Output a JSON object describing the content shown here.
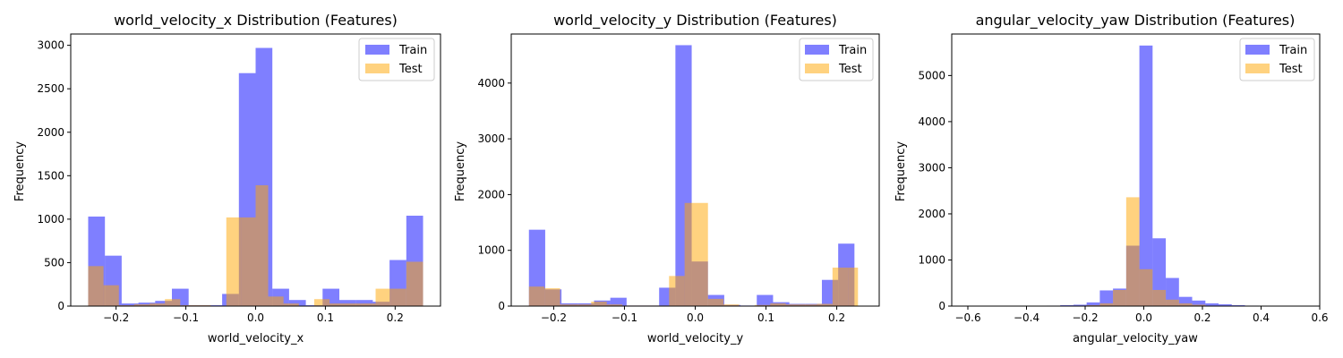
{
  "colors": {
    "train": "#0000ff",
    "test": "#ffa500",
    "train_alpha": 0.5,
    "test_alpha": 0.5
  },
  "chart_data": [
    {
      "type": "histogram",
      "title": "world_velocity_x Distribution (Features)",
      "xlabel": "world_velocity_x",
      "ylabel": "Frequency",
      "xlim": [
        -0.265,
        0.265
      ],
      "ylim": [
        0,
        3130
      ],
      "xticks": [
        -0.2,
        -0.1,
        0.0,
        0.1,
        0.2
      ],
      "xtick_labels": [
        "−0.2",
        "−0.1",
        "0.0",
        "0.1",
        "0.2"
      ],
      "yticks": [
        0,
        500,
        1000,
        1500,
        2000,
        2500,
        3000
      ],
      "ytick_labels": [
        "0",
        "500",
        "1000",
        "1500",
        "2000",
        "2500",
        "3000"
      ],
      "legend": [
        "Train",
        "Test"
      ],
      "legend_position": "top-right",
      "series": [
        {
          "name": "Train",
          "bins": [
            [
              -0.24,
              -0.216
            ],
            [
              -0.216,
              -0.192
            ],
            [
              -0.192,
              -0.168
            ],
            [
              -0.168,
              -0.144
            ],
            [
              -0.144,
              -0.12
            ],
            [
              -0.12,
              -0.096
            ],
            [
              -0.096,
              -0.072
            ],
            [
              -0.072,
              -0.048
            ],
            [
              -0.048,
              -0.024
            ],
            [
              -0.024,
              0.0
            ],
            [
              0.0,
              0.024
            ],
            [
              0.024,
              0.048
            ],
            [
              0.048,
              0.072
            ],
            [
              0.072,
              0.096
            ],
            [
              0.096,
              0.12
            ],
            [
              0.12,
              0.144
            ],
            [
              0.144,
              0.168
            ],
            [
              0.168,
              0.192
            ],
            [
              0.192,
              0.216
            ],
            [
              0.216,
              0.24
            ]
          ],
          "values": [
            1030,
            580,
            30,
            40,
            60,
            200,
            10,
            10,
            140,
            2680,
            2970,
            200,
            70,
            10,
            200,
            70,
            70,
            50,
            530,
            1040
          ]
        },
        {
          "name": "Test",
          "bins": [
            [
              -0.24,
              -0.218
            ],
            [
              -0.218,
              -0.196
            ],
            [
              -0.196,
              -0.174
            ],
            [
              -0.174,
              -0.152
            ],
            [
              -0.152,
              -0.13
            ],
            [
              -0.13,
              -0.108
            ],
            [
              -0.108,
              -0.086
            ],
            [
              -0.086,
              -0.064
            ],
            [
              -0.064,
              -0.042
            ],
            [
              -0.042,
              -0.02
            ],
            [
              -0.02,
              0.0
            ],
            [
              0.0,
              0.018
            ],
            [
              0.018,
              0.04
            ],
            [
              0.04,
              0.062
            ],
            [
              0.062,
              0.084
            ],
            [
              0.084,
              0.106
            ],
            [
              0.106,
              0.128
            ],
            [
              0.128,
              0.15
            ],
            [
              0.15,
              0.172
            ],
            [
              0.172,
              0.194
            ],
            [
              0.194,
              0.216
            ],
            [
              0.216,
              0.24
            ]
          ],
          "values": [
            460,
            240,
            10,
            20,
            30,
            80,
            10,
            10,
            0,
            1020,
            1020,
            1390,
            110,
            30,
            0,
            80,
            30,
            30,
            30,
            200,
            200,
            510
          ]
        }
      ]
    },
    {
      "type": "histogram",
      "title": "world_velocity_y Distribution (Features)",
      "xlabel": "world_velocity_y",
      "ylabel": "Frequency",
      "xlim": [
        -0.26,
        0.26
      ],
      "ylim": [
        0,
        4880
      ],
      "xticks": [
        -0.2,
        -0.1,
        0.0,
        0.1,
        0.2
      ],
      "xtick_labels": [
        "−0.2",
        "−0.1",
        "0.0",
        "0.1",
        "0.2"
      ],
      "yticks": [
        0,
        1000,
        2000,
        3000,
        4000
      ],
      "ytick_labels": [
        "0",
        "1000",
        "2000",
        "3000",
        "4000"
      ],
      "legend": [
        "Train",
        "Test"
      ],
      "legend_position": "top-right",
      "series": [
        {
          "name": "Train",
          "bins": [
            [
              -0.235,
              -0.212
            ],
            [
              -0.212,
              -0.189
            ],
            [
              -0.189,
              -0.166
            ],
            [
              -0.166,
              -0.143
            ],
            [
              -0.143,
              -0.12
            ],
            [
              -0.12,
              -0.097
            ],
            [
              -0.097,
              -0.074
            ],
            [
              -0.074,
              -0.051
            ],
            [
              -0.051,
              -0.028
            ],
            [
              -0.028,
              -0.005
            ],
            [
              -0.005,
              0.018
            ],
            [
              0.018,
              0.041
            ],
            [
              0.041,
              0.064
            ],
            [
              0.064,
              0.087
            ],
            [
              0.087,
              0.11
            ],
            [
              0.11,
              0.133
            ],
            [
              0.133,
              0.156
            ],
            [
              0.156,
              0.179
            ],
            [
              0.179,
              0.202
            ],
            [
              0.202,
              0.225
            ],
            [
              0.225,
              0.235
            ]
          ],
          "values": [
            1370,
            300,
            50,
            50,
            100,
            150,
            10,
            10,
            330,
            4680,
            800,
            200,
            20,
            10,
            200,
            70,
            40,
            40,
            470,
            1120,
            0
          ]
        },
        {
          "name": "Test",
          "bins": [
            [
              -0.235,
              -0.213
            ],
            [
              -0.213,
              -0.191
            ],
            [
              -0.191,
              -0.169
            ],
            [
              -0.169,
              -0.147
            ],
            [
              -0.147,
              -0.125
            ],
            [
              -0.125,
              -0.103
            ],
            [
              -0.103,
              -0.081
            ],
            [
              -0.081,
              -0.059
            ],
            [
              -0.059,
              -0.037
            ],
            [
              -0.037,
              -0.015
            ],
            [
              -0.015,
              0.0
            ],
            [
              0.0,
              0.018
            ],
            [
              0.018,
              0.04
            ],
            [
              0.04,
              0.062
            ],
            [
              0.062,
              0.084
            ],
            [
              0.084,
              0.106
            ],
            [
              0.106,
              0.128
            ],
            [
              0.128,
              0.15
            ],
            [
              0.15,
              0.172
            ],
            [
              0.172,
              0.194
            ],
            [
              0.194,
              0.216
            ],
            [
              0.216,
              0.23
            ]
          ],
          "values": [
            350,
            320,
            30,
            30,
            80,
            30,
            10,
            10,
            10,
            540,
            1850,
            1850,
            130,
            30,
            0,
            20,
            50,
            30,
            30,
            40,
            690,
            690
          ]
        }
      ]
    },
    {
      "type": "histogram",
      "title": "angular_velocity_yaw Distribution (Features)",
      "xlabel": "angular_velocity_yaw",
      "ylabel": "Frequency",
      "xlim": [
        -0.655,
        0.6
      ],
      "ylim": [
        0,
        5900
      ],
      "xticks": [
        -0.6,
        -0.4,
        -0.2,
        0.0,
        0.2,
        0.4,
        0.6
      ],
      "xtick_labels": [
        "−0.6",
        "−0.4",
        "−0.2",
        "0.0",
        "0.2",
        "0.4",
        "0.6"
      ],
      "yticks": [
        0,
        1000,
        2000,
        3000,
        4000,
        5000
      ],
      "ytick_labels": [
        "0",
        "1000",
        "2000",
        "3000",
        "4000",
        "5000"
      ],
      "legend": [
        "Train",
        "Test"
      ],
      "legend_position": "top-right",
      "series": [
        {
          "name": "Train",
          "bins": [
            [
              -0.6,
              -0.555
            ],
            [
              -0.555,
              -0.51
            ],
            [
              -0.51,
              -0.465
            ],
            [
              -0.465,
              -0.42
            ],
            [
              -0.42,
              -0.375
            ],
            [
              -0.375,
              -0.33
            ],
            [
              -0.33,
              -0.285
            ],
            [
              -0.285,
              -0.24
            ],
            [
              -0.24,
              -0.195
            ],
            [
              -0.195,
              -0.15
            ],
            [
              -0.15,
              -0.105
            ],
            [
              -0.105,
              -0.06
            ],
            [
              -0.06,
              -0.015
            ],
            [
              -0.015,
              0.03
            ],
            [
              0.03,
              0.075
            ],
            [
              0.075,
              0.12
            ],
            [
              0.12,
              0.165
            ],
            [
              0.165,
              0.21
            ],
            [
              0.21,
              0.255
            ],
            [
              0.255,
              0.3
            ],
            [
              0.3,
              0.345
            ],
            [
              0.345,
              0.39
            ],
            [
              0.39,
              0.435
            ],
            [
              0.435,
              0.48
            ],
            [
              0.48,
              0.525
            ]
          ],
          "values": [
            5,
            5,
            5,
            5,
            5,
            5,
            10,
            20,
            30,
            80,
            340,
            380,
            1310,
            5650,
            1470,
            610,
            200,
            120,
            60,
            40,
            20,
            10,
            5,
            5,
            5
          ]
        },
        {
          "name": "Test",
          "bins": [
            [
              -0.6,
              -0.555
            ],
            [
              -0.555,
              -0.51
            ],
            [
              -0.51,
              -0.465
            ],
            [
              -0.465,
              -0.42
            ],
            [
              -0.42,
              -0.375
            ],
            [
              -0.375,
              -0.33
            ],
            [
              -0.33,
              -0.285
            ],
            [
              -0.285,
              -0.24
            ],
            [
              -0.24,
              -0.195
            ],
            [
              -0.195,
              -0.15
            ],
            [
              -0.15,
              -0.105
            ],
            [
              -0.105,
              -0.06
            ],
            [
              -0.06,
              -0.015
            ],
            [
              -0.015,
              0.03
            ],
            [
              0.03,
              0.075
            ],
            [
              0.075,
              0.12
            ],
            [
              0.12,
              0.165
            ],
            [
              0.165,
              0.21
            ],
            [
              0.21,
              0.255
            ],
            [
              0.255,
              0.3
            ],
            [
              0.3,
              0.345
            ]
          ],
          "values": [
            5,
            5,
            5,
            5,
            5,
            5,
            5,
            5,
            10,
            20,
            60,
            350,
            2360,
            800,
            350,
            140,
            60,
            30,
            10,
            5,
            5
          ]
        }
      ]
    }
  ]
}
